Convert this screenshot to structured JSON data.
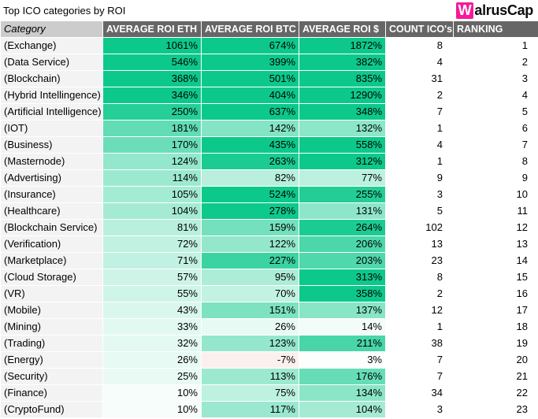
{
  "title": "Top ICO categories by ROI",
  "logo": {
    "prefix": "W",
    "rest": "alrusCap",
    "accent_color": "#f5199b"
  },
  "chart_data": {
    "type": "table",
    "title": "Top ICO categories by ROI",
    "columns": [
      "Category",
      "AVERAGE ROI ETH",
      "AVERAGE ROI BTC",
      "AVERAGE ROI $",
      "COUNT ICO's",
      "RANKING"
    ],
    "unit": "%",
    "heatmap": {
      "positive_color": "#0cc98b",
      "negative_color": "#e67c73",
      "neutral_color": "#ffffff",
      "positive_saturation_cap": 280,
      "negative_saturation_cap": 60
    },
    "rows": [
      {
        "category": "(Exchange)",
        "roi_eth": 1061,
        "roi_btc": 674,
        "roi_usd": 1872,
        "count": 8,
        "rank": 1
      },
      {
        "category": "(Data Service)",
        "roi_eth": 546,
        "roi_btc": 399,
        "roi_usd": 382,
        "count": 4,
        "rank": 2
      },
      {
        "category": "(Blockchain)",
        "roi_eth": 368,
        "roi_btc": 501,
        "roi_usd": 835,
        "count": 31,
        "rank": 3
      },
      {
        "category": "(Hybrid Intellingence)",
        "roi_eth": 346,
        "roi_btc": 404,
        "roi_usd": 1290,
        "count": 2,
        "rank": 4
      },
      {
        "category": "(Artificial Intelligence)",
        "roi_eth": 250,
        "roi_btc": 637,
        "roi_usd": 348,
        "count": 7,
        "rank": 5
      },
      {
        "category": "(IOT)",
        "roi_eth": 181,
        "roi_btc": 142,
        "roi_usd": 132,
        "count": 1,
        "rank": 6
      },
      {
        "category": "(Business)",
        "roi_eth": 170,
        "roi_btc": 435,
        "roi_usd": 558,
        "count": 4,
        "rank": 7
      },
      {
        "category": "(Masternode)",
        "roi_eth": 124,
        "roi_btc": 263,
        "roi_usd": 312,
        "count": 1,
        "rank": 8
      },
      {
        "category": "(Advertising)",
        "roi_eth": 114,
        "roi_btc": 82,
        "roi_usd": 77,
        "count": 9,
        "rank": 9
      },
      {
        "category": "(Insurance)",
        "roi_eth": 105,
        "roi_btc": 524,
        "roi_usd": 255,
        "count": 3,
        "rank": 10
      },
      {
        "category": "(Healthcare)",
        "roi_eth": 104,
        "roi_btc": 278,
        "roi_usd": 131,
        "count": 5,
        "rank": 11
      },
      {
        "category": "(Blockchain Service)",
        "roi_eth": 81,
        "roi_btc": 159,
        "roi_usd": 264,
        "count": 102,
        "rank": 12
      },
      {
        "category": "(Verification)",
        "roi_eth": 72,
        "roi_btc": 122,
        "roi_usd": 206,
        "count": 13,
        "rank": 13
      },
      {
        "category": "(Marketplace)",
        "roi_eth": 71,
        "roi_btc": 227,
        "roi_usd": 203,
        "count": 23,
        "rank": 14
      },
      {
        "category": "(Cloud Storage)",
        "roi_eth": 57,
        "roi_btc": 95,
        "roi_usd": 313,
        "count": 8,
        "rank": 15
      },
      {
        "category": "(VR)",
        "roi_eth": 55,
        "roi_btc": 70,
        "roi_usd": 358,
        "count": 2,
        "rank": 16
      },
      {
        "category": "(Mobile)",
        "roi_eth": 43,
        "roi_btc": 151,
        "roi_usd": 137,
        "count": 12,
        "rank": 17
      },
      {
        "category": "(Mining)",
        "roi_eth": 33,
        "roi_btc": 26,
        "roi_usd": 14,
        "count": 1,
        "rank": 18
      },
      {
        "category": "(Trading)",
        "roi_eth": 32,
        "roi_btc": 123,
        "roi_usd": 211,
        "count": 38,
        "rank": 19
      },
      {
        "category": "(Energy)",
        "roi_eth": 26,
        "roi_btc": -7,
        "roi_usd": 3,
        "count": 7,
        "rank": 20
      },
      {
        "category": "(Security)",
        "roi_eth": 25,
        "roi_btc": 113,
        "roi_usd": 176,
        "count": 7,
        "rank": 21
      },
      {
        "category": "(Finance)",
        "roi_eth": 10,
        "roi_btc": 75,
        "roi_usd": 134,
        "count": 34,
        "rank": 22
      },
      {
        "category": "(CryptoFund)",
        "roi_eth": 10,
        "roi_btc": 117,
        "roi_usd": 104,
        "count": 3,
        "rank": 23
      }
    ]
  }
}
